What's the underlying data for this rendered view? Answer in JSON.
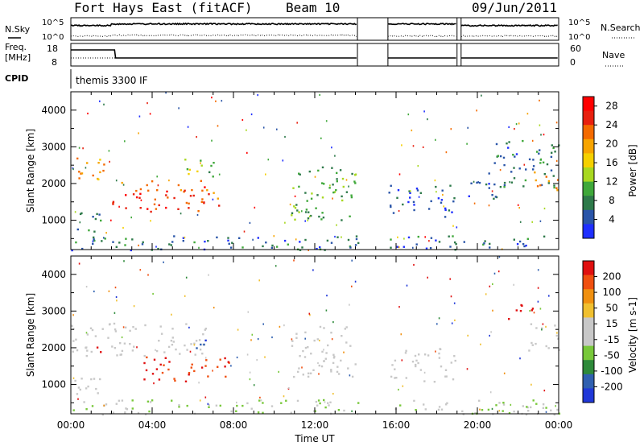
{
  "header": {
    "title": "Fort Hays East (fitACF)",
    "beam": "Beam 10",
    "date": "09/Jun/2011"
  },
  "param_panel": {
    "nsky_label": "N.Sky",
    "nsearch_label": "N.Search",
    "noise_ticks": [
      "10^5",
      "10^0"
    ],
    "freq_label_1": "Freq.",
    "freq_label_2": "[MHz]",
    "freq_ticks": [
      "18",
      "8"
    ],
    "nave_label": "Nave",
    "nave_ticks": [
      "60",
      "0"
    ],
    "cpid_label": "CPID",
    "cpid_value": "themis 3300 IF"
  },
  "colors": {
    "power_scale": [
      "#1f2fff",
      "#2a55a8",
      "#2e7a4a",
      "#3fa83a",
      "#a8d820",
      "#f5d000",
      "#f7a400",
      "#f46a00",
      "#e8200f",
      "#ff0000"
    ],
    "velocity_scale": [
      "#2038d8",
      "#3060b0",
      "#2e8a3a",
      "#78c83a",
      "#c8c8c8",
      "#c8c8c8",
      "#f0c030",
      "#f09010",
      "#f05010",
      "#e01010"
    ]
  },
  "chart_data": [
    {
      "type": "heatmap",
      "panel": "power",
      "ylabel": "Slant Range [km]",
      "yticks": [
        "1000",
        "2000",
        "3000",
        "4000"
      ],
      "ylim": [
        200,
        4500
      ],
      "xlim": [
        0,
        24
      ],
      "colorbar_label": "Power [dB]",
      "colorbar_ticks": [
        "4",
        "8",
        "12",
        "16",
        "20",
        "24",
        "28"
      ],
      "clim": [
        0,
        30
      ],
      "data_gaps_hours": [
        [
          14.1,
          15.6
        ],
        [
          19.0,
          19.2
        ]
      ],
      "echo_bands": [
        {
          "t0": 0.0,
          "t1": 1.6,
          "r0": 2000,
          "r1": 2800,
          "value": 20
        },
        {
          "t0": 2.0,
          "t1": 7.5,
          "r0": 1250,
          "r1": 2100,
          "value": 24
        },
        {
          "t0": 5.0,
          "t1": 7.0,
          "r0": 2200,
          "r1": 2700,
          "value": 12
        },
        {
          "t0": 0.0,
          "t1": 1.5,
          "r0": 700,
          "r1": 1300,
          "value": 6
        },
        {
          "t0": 10.8,
          "t1": 14.0,
          "r0": 1000,
          "r1": 2600,
          "value": 10
        },
        {
          "t0": 15.6,
          "t1": 18.9,
          "r0": 1100,
          "r1": 2000,
          "value": 5
        },
        {
          "t0": 19.2,
          "t1": 21.3,
          "r0": 1600,
          "r1": 2100,
          "value": 5
        },
        {
          "t0": 20.5,
          "t1": 24.0,
          "r0": 1900,
          "r1": 3200,
          "value": 6
        },
        {
          "t0": 22.7,
          "t1": 24.0,
          "r0": 1800,
          "r1": 2400,
          "value": 22
        },
        {
          "t0": 0.0,
          "t1": 24.0,
          "r0": 200,
          "r1": 600,
          "value": 6
        }
      ]
    },
    {
      "type": "heatmap",
      "panel": "velocity",
      "ylabel": "Slant Range [km]",
      "yticks": [
        "1000",
        "2000",
        "3000",
        "4000"
      ],
      "ylim": [
        200,
        4500
      ],
      "xlim": [
        0,
        24
      ],
      "xlabel": "Time UT",
      "xticks": [
        "00:00",
        "04:00",
        "08:00",
        "12:00",
        "16:00",
        "20:00",
        "00:00"
      ],
      "colorbar_label": "Velocity [m s-1]",
      "colorbar_ticks": [
        "200",
        "100",
        "50",
        "15",
        "-15",
        "-50",
        "-100",
        "-200"
      ],
      "clim": [
        -250,
        250
      ],
      "data_gaps_hours": [
        [
          14.1,
          15.6
        ],
        [
          19.0,
          19.2
        ]
      ],
      "echo_bands": [
        {
          "t0": 0.0,
          "t1": 6.8,
          "r0": 1800,
          "r1": 2700,
          "value": 0
        },
        {
          "t0": 5.8,
          "t1": 6.8,
          "r0": 2000,
          "r1": 2400,
          "value": -200
        },
        {
          "t0": 3.5,
          "t1": 7.8,
          "r0": 1100,
          "r1": 1800,
          "value": 200
        },
        {
          "t0": 1.0,
          "t1": 1.5,
          "r0": 1800,
          "r1": 2200,
          "value": 220
        },
        {
          "t0": 0.0,
          "t1": 1.5,
          "r0": 600,
          "r1": 1300,
          "value": 0
        },
        {
          "t0": 10.8,
          "t1": 14.0,
          "r0": 1200,
          "r1": 2600,
          "value": 0
        },
        {
          "t0": 15.6,
          "t1": 18.9,
          "r0": 1100,
          "r1": 2000,
          "value": 0
        },
        {
          "t0": 21.5,
          "t1": 22.7,
          "r0": 2700,
          "r1": 3200,
          "value": 220
        },
        {
          "t0": 22.5,
          "t1": 24.0,
          "r0": 1900,
          "r1": 2700,
          "value": 0
        },
        {
          "t0": 0.0,
          "t1": 24.0,
          "r0": 200,
          "r1": 600,
          "value": -50
        }
      ]
    }
  ]
}
